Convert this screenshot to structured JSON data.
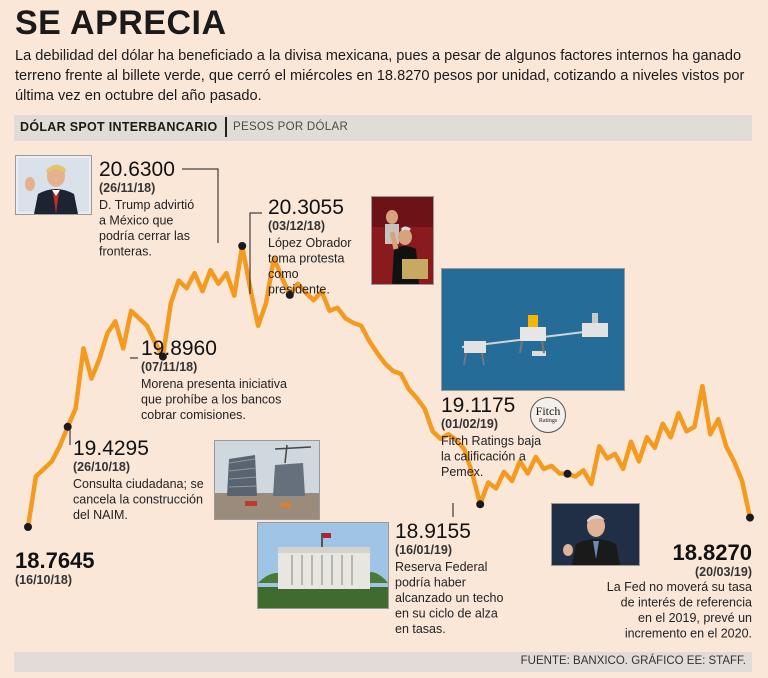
{
  "header": {
    "title": "SE APRECIA",
    "subtitle": "La debilidad del dólar ha beneficiado a la divisa mexicana, pues a pesar de algunos factores internos ha ganado terreno frente al billete verde, que cerró el miércoles en 18.8270 pesos por unidad, cotizando a niveles vistos por última vez en octubre del año pasado."
  },
  "band": {
    "label": "DÓLAR SPOT INTERBANCARIO",
    "unit": "PESOS POR DÓLAR"
  },
  "source": "FUENTE: BANXICO. GRÁFICO EE: STAFF.",
  "colors": {
    "line": "#f39a1f",
    "background": "#fbe7d8",
    "band": "#e1dcd7",
    "marker": "#1a1a1a"
  },
  "chart_data": {
    "type": "line",
    "title": "DÓLAR SPOT INTERBANCARIO",
    "ylabel": "PESOS POR DÓLAR",
    "grid": false,
    "ylim": [
      18.7,
      20.7
    ],
    "series": [
      {
        "values": [
          18.7645,
          19.1,
          19.15,
          19.2,
          19.3,
          19.4295,
          19.55,
          19.95,
          19.75,
          19.88,
          20.05,
          20.13,
          19.95,
          20.2,
          20.15,
          20.1,
          19.99,
          19.896,
          20.25,
          20.4,
          20.35,
          20.45,
          20.33,
          20.47,
          20.38,
          20.45,
          20.3,
          20.63,
          20.35,
          20.1,
          20.25,
          20.55,
          20.42,
          20.3055,
          20.38,
          20.32,
          20.27,
          20.33,
          20.2,
          20.22,
          20.15,
          20.12,
          20.1,
          20.0,
          19.92,
          19.85,
          19.8,
          19.78,
          19.68,
          19.62,
          19.55,
          19.4,
          19.35,
          19.38,
          19.34,
          19.28,
          19.12,
          18.9155,
          19.06,
          19.02,
          19.13,
          19.07,
          19.2,
          19.12,
          19.23,
          19.15,
          19.17,
          19.12,
          19.1175,
          19.1,
          19.14,
          19.05,
          19.3,
          19.22,
          19.25,
          19.15,
          19.33,
          19.2,
          19.36,
          19.29,
          19.45,
          19.36,
          19.52,
          19.4,
          19.43,
          19.7,
          19.38,
          19.48,
          19.3,
          19.2,
          19.07,
          18.827
        ]
      }
    ],
    "annotations": [
      {
        "value": "18.7645",
        "date": "(16/10/18)",
        "text": ""
      },
      {
        "value": "19.4295",
        "date": "(26/10/18)",
        "text": "Consulta ciudadana; se cancela la construcción del NAIM."
      },
      {
        "value": "19.8960",
        "date": "(07/11/18)",
        "text": "Morena presenta iniciativa que prohíbe a los bancos cobrar comisiones."
      },
      {
        "value": "20.6300",
        "date": "(26/11/18)",
        "text": "D. Trump advirtió a México que podría cerrar las fronteras."
      },
      {
        "value": "20.3055",
        "date": "(03/12/18)",
        "text": "López Obrador toma protesta como presidente."
      },
      {
        "value": "18.9155",
        "date": "(16/01/19)",
        "text": "Reserva Federal podría haber alcanzado un techo en su ciclo de alza en tasas."
      },
      {
        "value": "19.1175",
        "date": "(01/02/19)",
        "text": "Fitch Ratings baja la calificación a Pemex."
      },
      {
        "value": "18.8270",
        "date": "(20/03/19)",
        "text": "La Fed no moverá su tasa de interés de referencia en el 2019, prevé un incremento en el 2020."
      }
    ]
  },
  "photos": [
    {
      "name": "trump-photo",
      "icon": "portrait-icon"
    },
    {
      "name": "amlo-photo",
      "icon": "portrait-icon"
    },
    {
      "name": "naim-construction-photo",
      "icon": "construction-icon"
    },
    {
      "name": "federal-reserve-photo",
      "icon": "building-icon"
    },
    {
      "name": "pemex-platform-photo",
      "icon": "oil-platform-icon"
    },
    {
      "name": "powell-photo",
      "icon": "portrait-icon"
    }
  ],
  "fitch_logo": {
    "line1": "Fitch",
    "line2": "Ratings"
  }
}
